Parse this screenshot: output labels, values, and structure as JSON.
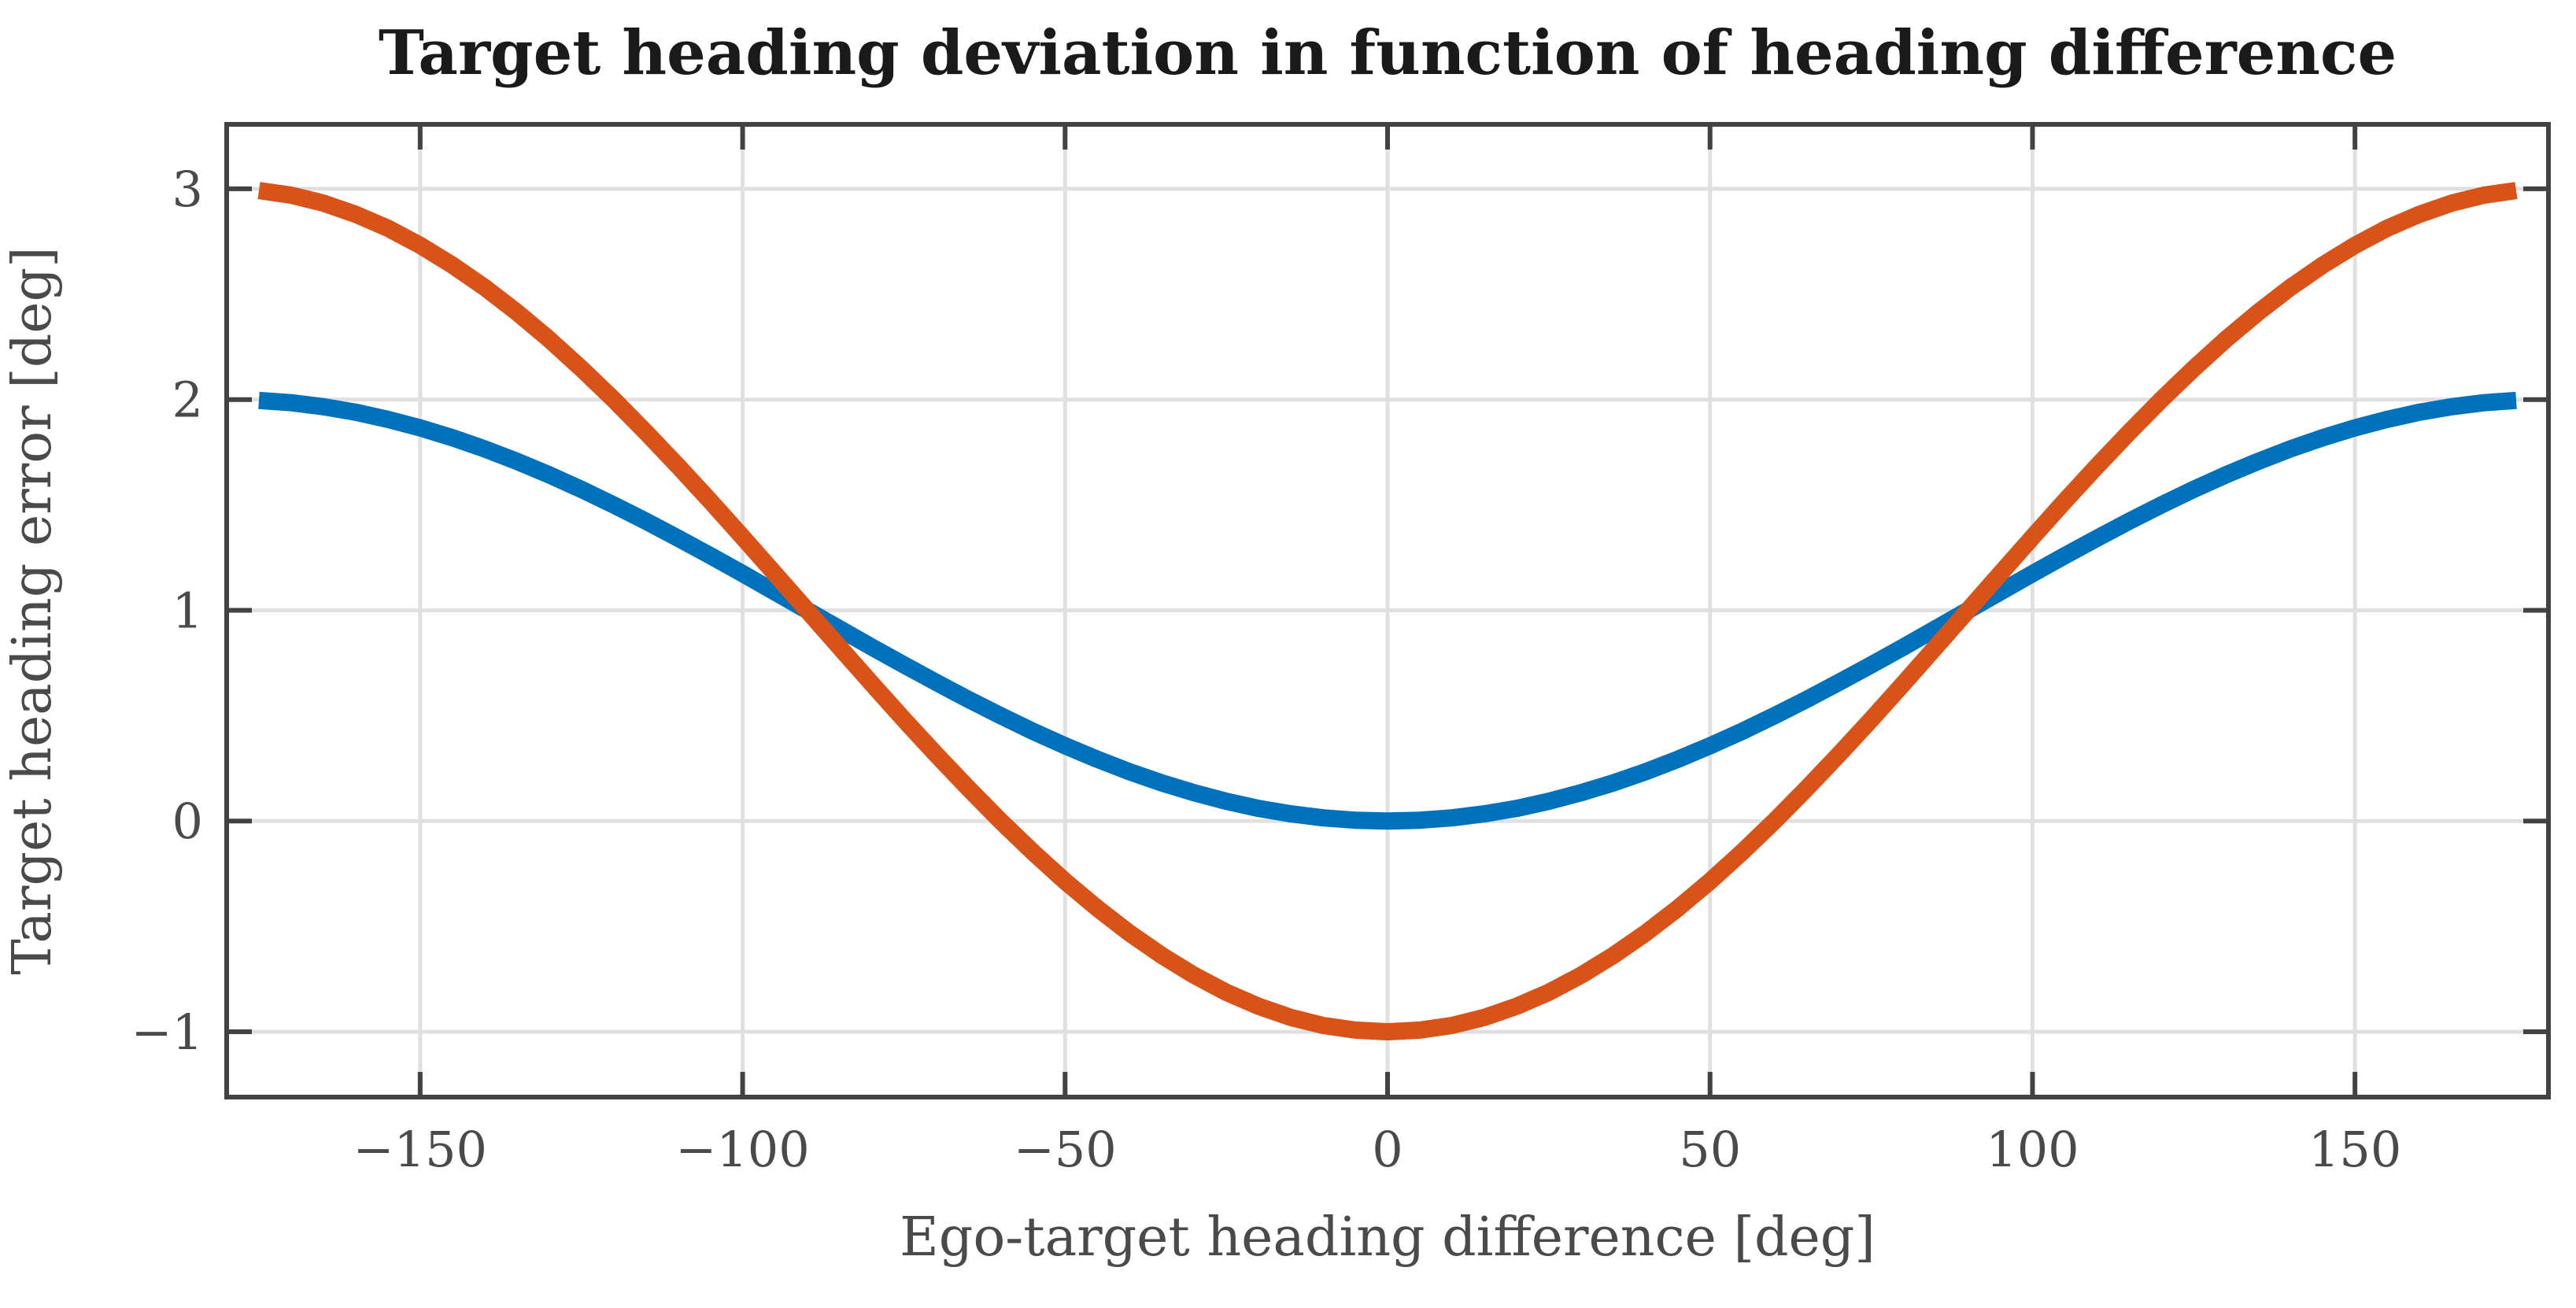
{
  "figure": {
    "background": "#ffffff"
  },
  "chart_data": {
    "type": "line",
    "title": "Target heading deviation in function of heading difference",
    "xlabel": "Ego-target heading difference [deg]",
    "ylabel": "Target heading error [deg]",
    "xlim": [
      -180,
      180
    ],
    "ylim": [
      -1.31,
      3.306
    ],
    "xticks": [
      -150,
      -100,
      -50,
      0,
      50,
      100,
      150
    ],
    "xtick_labels": [
      "−150",
      "−100",
      "−50",
      "0",
      "50",
      "100",
      "150"
    ],
    "yticks": [
      -1,
      0,
      1,
      2,
      3
    ],
    "ytick_labels": [
      "−1",
      "0",
      "1",
      "2",
      "3"
    ],
    "grid": true,
    "legend": "none",
    "x": [
      -175,
      -170,
      -165,
      -160,
      -155,
      -150,
      -145,
      -140,
      -135,
      -130,
      -125,
      -120,
      -115,
      -110,
      -105,
      -100,
      -95,
      -90,
      -85,
      -80,
      -75,
      -70,
      -65,
      -60,
      -55,
      -50,
      -45,
      -40,
      -35,
      -30,
      -25,
      -20,
      -15,
      -10,
      -5,
      0,
      5,
      10,
      15,
      20,
      25,
      30,
      35,
      40,
      45,
      50,
      55,
      60,
      65,
      70,
      75,
      80,
      85,
      90,
      95,
      100,
      105,
      110,
      115,
      120,
      125,
      130,
      135,
      140,
      145,
      150,
      155,
      160,
      165,
      170,
      175
    ],
    "series": [
      {
        "name": "blue-curve",
        "color": "#0072BD",
        "values": [
          1.996,
          1.985,
          1.966,
          1.94,
          1.906,
          1.866,
          1.819,
          1.766,
          1.707,
          1.643,
          1.574,
          1.5,
          1.423,
          1.342,
          1.259,
          1.174,
          1.087,
          1.0,
          0.913,
          0.826,
          0.741,
          0.658,
          0.577,
          0.5,
          0.426,
          0.357,
          0.293,
          0.234,
          0.181,
          0.134,
          0.094,
          0.06,
          0.034,
          0.015,
          0.004,
          0.0,
          0.004,
          0.015,
          0.034,
          0.06,
          0.094,
          0.134,
          0.181,
          0.234,
          0.293,
          0.357,
          0.426,
          0.5,
          0.577,
          0.658,
          0.741,
          0.826,
          0.913,
          1.0,
          1.087,
          1.174,
          1.259,
          1.342,
          1.423,
          1.5,
          1.574,
          1.643,
          1.707,
          1.766,
          1.819,
          1.866,
          1.906,
          1.94,
          1.966,
          1.985,
          1.996
        ]
      },
      {
        "name": "orange-curve",
        "color": "#D95319",
        "values": [
          2.992,
          2.97,
          2.932,
          2.879,
          2.813,
          2.732,
          2.638,
          2.532,
          2.414,
          2.286,
          2.147,
          2.0,
          1.845,
          1.684,
          1.518,
          1.347,
          1.174,
          1.0,
          0.826,
          0.653,
          0.482,
          0.316,
          0.155,
          0.0,
          -0.147,
          -0.286,
          -0.414,
          -0.532,
          -0.638,
          -0.732,
          -0.813,
          -0.879,
          -0.932,
          -0.97,
          -0.992,
          -1.0,
          -0.992,
          -0.97,
          -0.932,
          -0.879,
          -0.813,
          -0.732,
          -0.638,
          -0.532,
          -0.414,
          -0.286,
          -0.147,
          0.0,
          0.155,
          0.316,
          0.482,
          0.653,
          0.826,
          1.0,
          1.174,
          1.347,
          1.518,
          1.684,
          1.845,
          2.0,
          2.147,
          2.286,
          2.414,
          2.532,
          2.638,
          2.732,
          2.813,
          2.879,
          2.932,
          2.97,
          2.992
        ]
      }
    ],
    "styles": {
      "axis_color": "#424242",
      "grid_color": "#e0e0e2",
      "tick_label_color": "#4a4a4a",
      "title_color": "#1a1a1a",
      "line_width": 22,
      "axis_line_width": 6,
      "grid_line_width": 5,
      "tick_length": 32
    }
  }
}
